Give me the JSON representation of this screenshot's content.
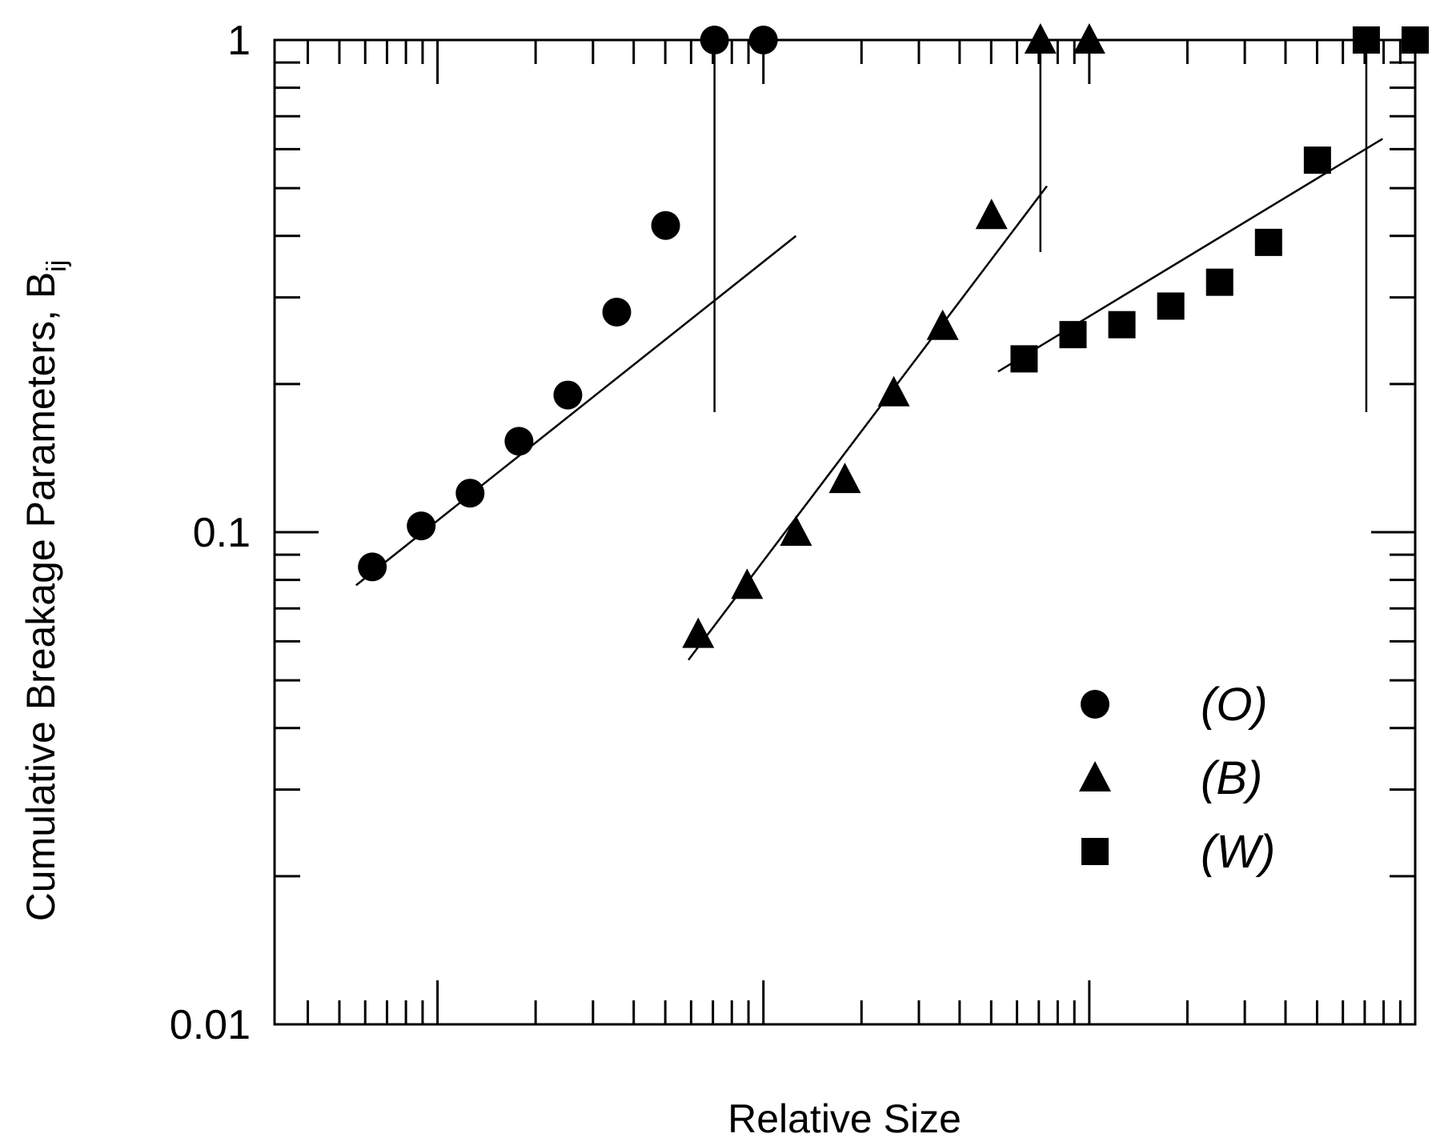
{
  "chart_data": {
    "type": "scatter",
    "title": "",
    "xlabel": "Relative Size",
    "ylabel": "Cumulative Breakage Parameters, B",
    "ylabel_subscript": "ij",
    "y_scale": "log",
    "x_scale": "log",
    "ylim": [
      0.01,
      1
    ],
    "xlim_decades": [
      -2.5,
      1
    ],
    "y_tick_labels": [
      {
        "value": 1,
        "label": "1"
      },
      {
        "value": 0.1,
        "label": "0.1"
      },
      {
        "value": 0.01,
        "label": "0.01"
      }
    ],
    "grid": false,
    "legend_position": "bottom-right",
    "series": [
      {
        "name": "(O)",
        "marker": "circle",
        "x_log": [
          -2.2,
          -2.05,
          -1.9,
          -1.75,
          -1.6,
          -1.45,
          -1.3,
          -1.15,
          -1.0
        ],
        "y": [
          0.085,
          0.103,
          0.12,
          0.153,
          0.19,
          0.28,
          0.42,
          1,
          1
        ],
        "fit_line": {
          "x_log": [
            -2.25,
            -0.9
          ],
          "y": [
            0.078,
            0.4
          ]
        },
        "reference_x_log": -1.15
      },
      {
        "name": "(B)",
        "marker": "triangle",
        "x_log": [
          -1.2,
          -1.05,
          -0.9,
          -0.75,
          -0.6,
          -0.45,
          -0.3,
          -0.15,
          0.0
        ],
        "y": [
          0.062,
          0.078,
          0.1,
          0.128,
          0.192,
          0.262,
          0.44,
          1,
          1
        ],
        "fit_line": {
          "x_log": [
            -1.23,
            -0.13
          ],
          "y": [
            0.055,
            0.505
          ]
        },
        "reference_x_log": -0.15
      },
      {
        "name": "(W)",
        "marker": "square",
        "x_log": [
          -0.2,
          -0.05,
          0.1,
          0.25,
          0.4,
          0.55,
          0.7,
          0.85,
          1.0
        ],
        "y": [
          0.225,
          0.252,
          0.264,
          0.288,
          0.322,
          0.388,
          0.57,
          1,
          1
        ],
        "fit_line": {
          "x_log": [
            -0.28,
            0.9
          ],
          "y": [
            0.212,
            0.63
          ]
        },
        "reference_x_log": 0.85
      }
    ]
  }
}
